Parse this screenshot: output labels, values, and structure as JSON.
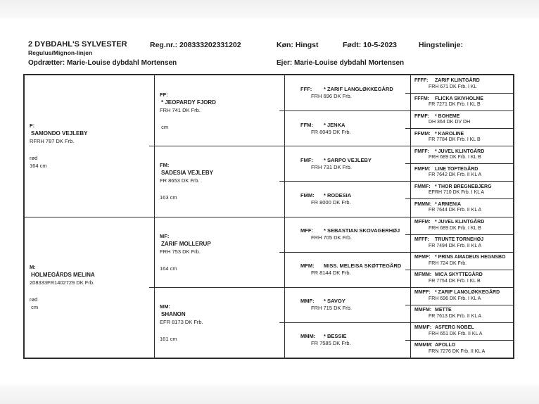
{
  "header": {
    "title": "2 DYBDAHL'S SYLVESTER",
    "reg": "Reg.nr.: 208333202331202",
    "sex": "Køn: Hingst",
    "born": "Født: 10-5-2023",
    "stallion_line_label": "Hingstelinje:",
    "lineage": "Regulus/Mignon-linjen",
    "breeder": "Opdrætter: Marie-Louise dybdahl Mortensen",
    "owner": "Ejer: Marie-Louise dybdahl Mortensen"
  },
  "pedigree": {
    "F": {
      "label": "F:",
      "name": "SAMONDO VEJLEBY",
      "reg": "RFRH 787 DK Frb.",
      "color": "rød",
      "height": "164 cm"
    },
    "M": {
      "label": "M:",
      "name": "HOLMEGÅRDS MELINA",
      "reg": "208333FR1402729 DK Frb.",
      "color": "rød",
      "height": " cm"
    },
    "FF": {
      "label": "FF:",
      "name": "* JEOPARDY FJORD",
      "reg": "FRH 741 DK Frb.",
      "color": "",
      "height": " cm"
    },
    "FM": {
      "label": "FM:",
      "name": "SADESIA VEJLEBY",
      "reg": "FR 8653 DK Frb.",
      "color": "",
      "height": "163 cm"
    },
    "MF": {
      "label": "MF:",
      "name": "ZARIF MOLLERUP",
      "reg": "FRH 753 DK Frb.",
      "color": "",
      "height": "164 cm"
    },
    "MM": {
      "label": "MM:",
      "name": "SHANON",
      "reg": "EFR 8173 DK Frb.",
      "color": "",
      "height": "161 cm"
    },
    "FFF": {
      "label": "FFF:",
      "name": "* ZARIF LANGLØKKEGÅRD",
      "reg": "FRH 696 DK Frb."
    },
    "FFM": {
      "label": "FFM:",
      "name": "* JENKA",
      "reg": "FR 8049 DK Frb."
    },
    "FMF": {
      "label": "FMF:",
      "name": "* SARPO VEJLEBY",
      "reg": "FRH 731 DK Frb."
    },
    "FMM": {
      "label": "FMM:",
      "name": "* RODESIA",
      "reg": "FR 8000 DK Frb."
    },
    "MFF": {
      "label": "MFF:",
      "name": "* SEBASTIAN SKOVAGERHØJ",
      "reg": "FRH 705 DK Frb."
    },
    "MFM": {
      "label": "MFM:",
      "name": "MISS. MELEISA SKØTTEGÅRD",
      "reg": "FR 8144 DK Frb."
    },
    "MMF": {
      "label": "MMF:",
      "name": "* SAVOY",
      "reg": "FRH 715 DK Frb."
    },
    "MMM": {
      "label": "MMM:",
      "name": "* BESSIE",
      "reg": "FR 7585 DK Frb."
    },
    "FFFF": {
      "label": "FFFF:",
      "name": "ZARIF KLINTGÅRD",
      "reg": "FRH 671 DK Frb. I KL"
    },
    "FFFM": {
      "label": "FFFM:",
      "name": "FLICKA SKIVHOLME",
      "reg": "FR 7271 DK Frb. I KL B"
    },
    "FFMF": {
      "label": "FFMF:",
      "name": "* BOHEME",
      "reg": "DH 364 DK DV  DH"
    },
    "FFMM": {
      "label": "FFMM:",
      "name": "* KAROLINE",
      "reg": "FR 7784 DK Frb. I KL B"
    },
    "FMFF": {
      "label": "FMFF:",
      "name": "* JUVEL KLINTGÅRD",
      "reg": "FRH 689 DK Frb. I KL B"
    },
    "FMFM": {
      "label": "FMFM:",
      "name": "LINE TOFTEGÅRD",
      "reg": "FR 7642 DK Frb.  II KL A"
    },
    "FMMF": {
      "label": "FMMF:",
      "name": "* THOR BREGNEBJERG",
      "reg": "EFRH 710 DK Frb. I KL A"
    },
    "FMMM": {
      "label": "FMMM:",
      "name": "* ARMENIA",
      "reg": "FR 7644 DK Frb. II KL A"
    },
    "MFFM": {
      "label": "MFFM:",
      "name": "* JUVEL KLINTGÅRD",
      "reg": "FRH 689 DK Frb. I KL B"
    },
    "MFFF": {
      "label": "MFFF:",
      "name": "TRUNTE TORNEHØJ",
      "reg": "FR 7494 DK Frb. II KL A"
    },
    "MFMF": {
      "label": "MFMF:",
      "name": "* PRINS AMADEUS HEGNSBO",
      "reg": "FRH 724 DK Frb."
    },
    "MFMM": {
      "label": "MFMM:",
      "name": "MICA SKYTTEGÅRD",
      "reg": "FR 7754 DK Frb. I KL B"
    },
    "MMFF": {
      "label": "MMFF:",
      "name": "* ZARIF LANGLØKKEGÅRD",
      "reg": "FRH 696 DK Frb. I KL A"
    },
    "MMFM": {
      "label": "MMFM:",
      "name": "METTE",
      "reg": "FR 7613 DK Frb. II KL A"
    },
    "MMMF": {
      "label": "MMMF:",
      "name": "ASFERG NOBEL",
      "reg": "FRH 651 DK Frb. II KL A"
    },
    "MMMM": {
      "label": "MMMM:",
      "name": "APOLLO",
      "reg": "FRN 7276 DK Frb. II KL A"
    }
  }
}
